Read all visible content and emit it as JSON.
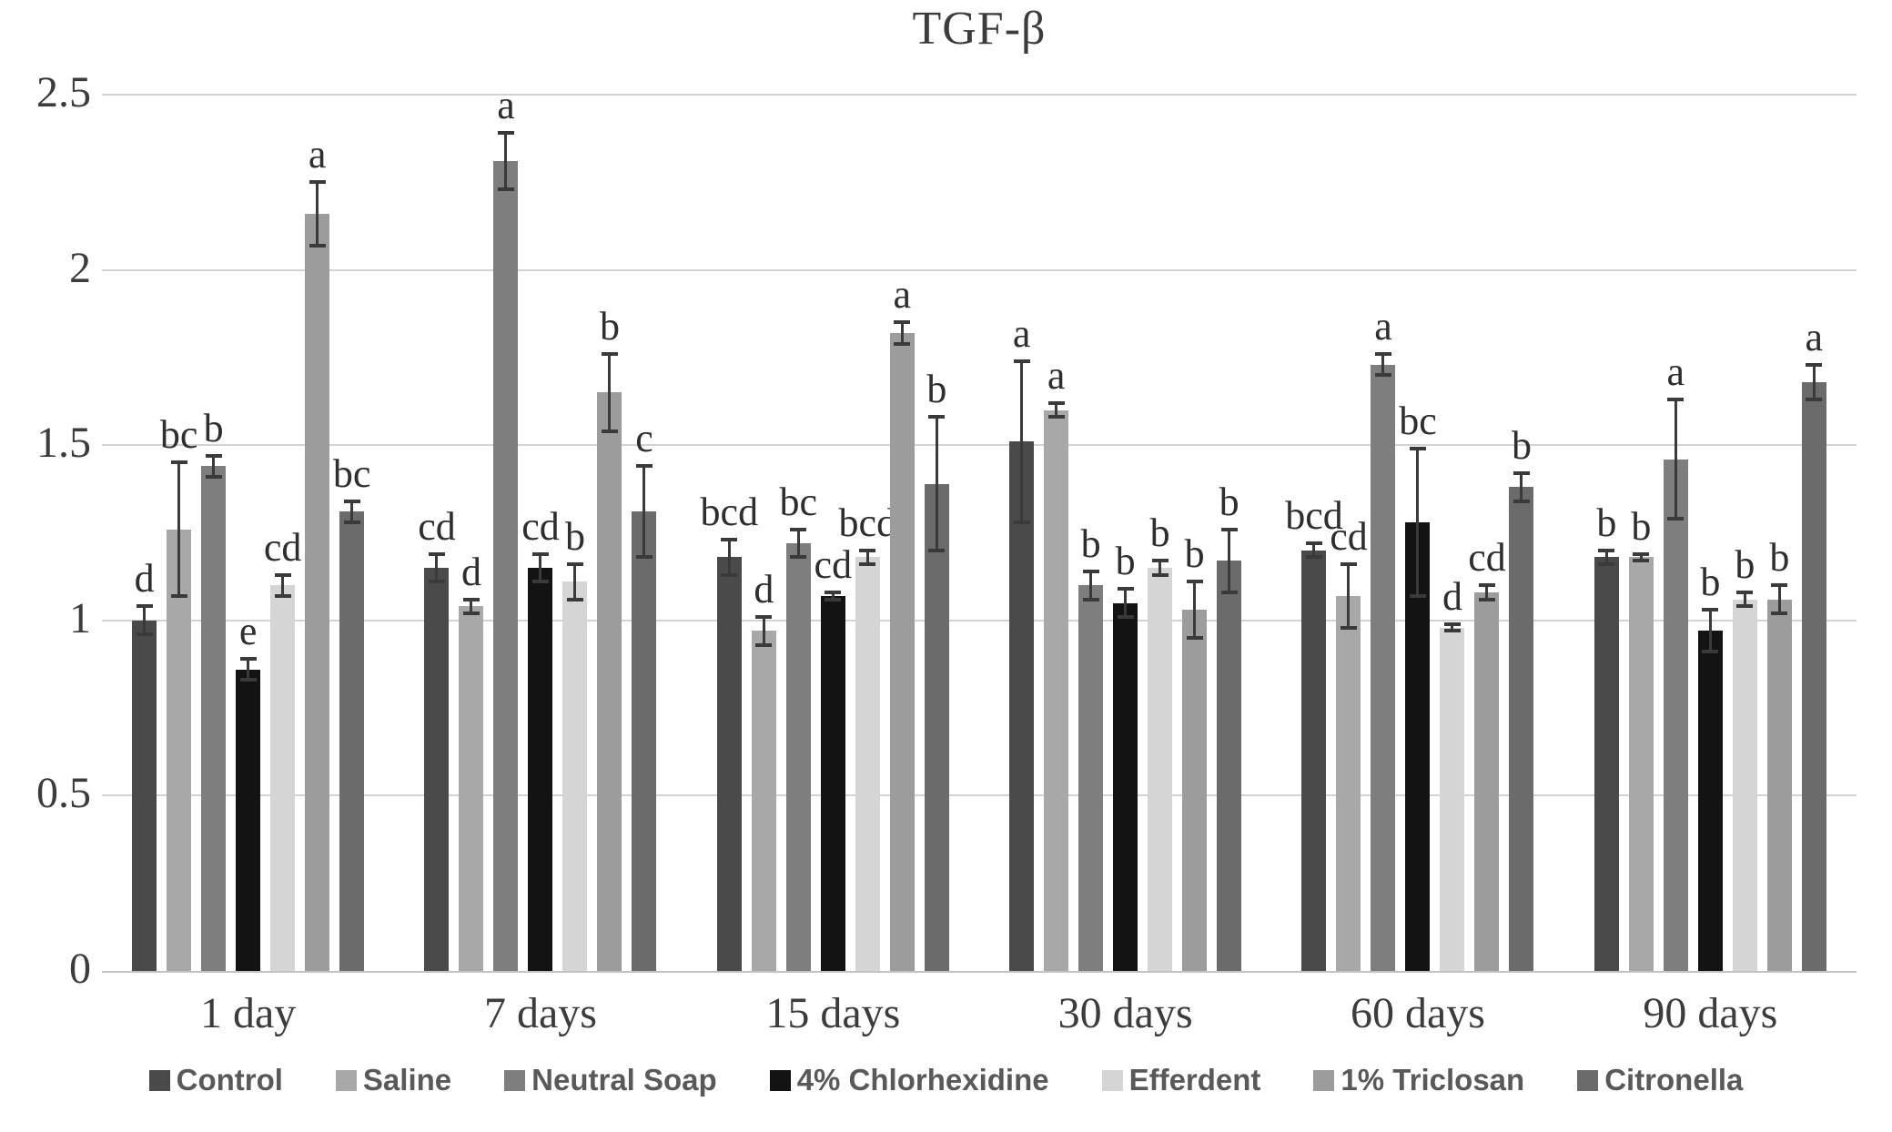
{
  "title": "TGF-β",
  "y_axis": {
    "tick_labels": [
      "2.5",
      "2",
      "1.5",
      "1",
      "0.5",
      "0"
    ],
    "tick_values": [
      2.5,
      2,
      1.5,
      1,
      0.5,
      0
    ]
  },
  "chart_data": {
    "type": "bar",
    "title": "TGF-β",
    "categories": [
      "1 day",
      "7 days",
      "15 days",
      "30 days",
      "60 days",
      "90 days"
    ],
    "ylim": [
      0,
      2.5
    ],
    "grid": true,
    "legend_position": "bottom",
    "error_bars": true,
    "series": [
      {
        "name": "Control",
        "color": "#4a4a4a",
        "values": [
          1.0,
          1.15,
          1.18,
          1.51,
          1.2,
          1.18
        ],
        "errors": [
          0.04,
          0.04,
          0.05,
          0.23,
          0.02,
          0.02
        ],
        "letters": [
          "d",
          "cd",
          "bcd",
          "a",
          "bcd",
          "b"
        ]
      },
      {
        "name": "Saline",
        "color": "#a8a8a8",
        "values": [
          1.26,
          1.04,
          0.97,
          1.6,
          1.07,
          1.18
        ],
        "errors": [
          0.19,
          0.02,
          0.04,
          0.02,
          0.09,
          0.01
        ],
        "letters": [
          "bc",
          "d",
          "d",
          "a",
          "cd",
          "b"
        ]
      },
      {
        "name": "Neutral Soap",
        "color": "#7e7e7e",
        "values": [
          1.44,
          2.31,
          1.22,
          1.1,
          1.73,
          1.46
        ],
        "errors": [
          0.03,
          0.08,
          0.04,
          0.04,
          0.03,
          0.17
        ],
        "letters": [
          "b",
          "a",
          "bc",
          "b",
          "a",
          "a"
        ]
      },
      {
        "name": "4% Chlorhexidine",
        "color": "#131313",
        "values": [
          0.86,
          1.15,
          1.07,
          1.05,
          1.28,
          0.97
        ],
        "errors": [
          0.03,
          0.04,
          0.01,
          0.04,
          0.21,
          0.06
        ],
        "letters": [
          "e",
          "cd",
          "cd",
          "b",
          "bc",
          "b"
        ]
      },
      {
        "name": "Efferdent",
        "color": "#d5d5d5",
        "values": [
          1.1,
          1.11,
          1.18,
          1.15,
          0.98,
          1.06
        ],
        "errors": [
          0.03,
          0.05,
          0.02,
          0.02,
          0.01,
          0.02
        ],
        "letters": [
          "cd",
          "b",
          "bcd",
          "b",
          "d",
          "b"
        ]
      },
      {
        "name": "1% Triclosan",
        "color": "#9c9c9c",
        "values": [
          2.16,
          1.65,
          1.82,
          1.03,
          1.08,
          1.06
        ],
        "errors": [
          0.09,
          0.11,
          0.03,
          0.08,
          0.02,
          0.04
        ],
        "letters": [
          "a",
          "b",
          "a",
          "b",
          "cd",
          "b"
        ]
      },
      {
        "name": "Citronella",
        "color": "#6b6b6b",
        "values": [
          1.31,
          1.31,
          1.39,
          1.17,
          1.38,
          1.68
        ],
        "errors": [
          0.03,
          0.13,
          0.19,
          0.09,
          0.04,
          0.05
        ],
        "letters": [
          "bc",
          "c",
          "b",
          "b",
          "b",
          "a"
        ]
      }
    ]
  }
}
